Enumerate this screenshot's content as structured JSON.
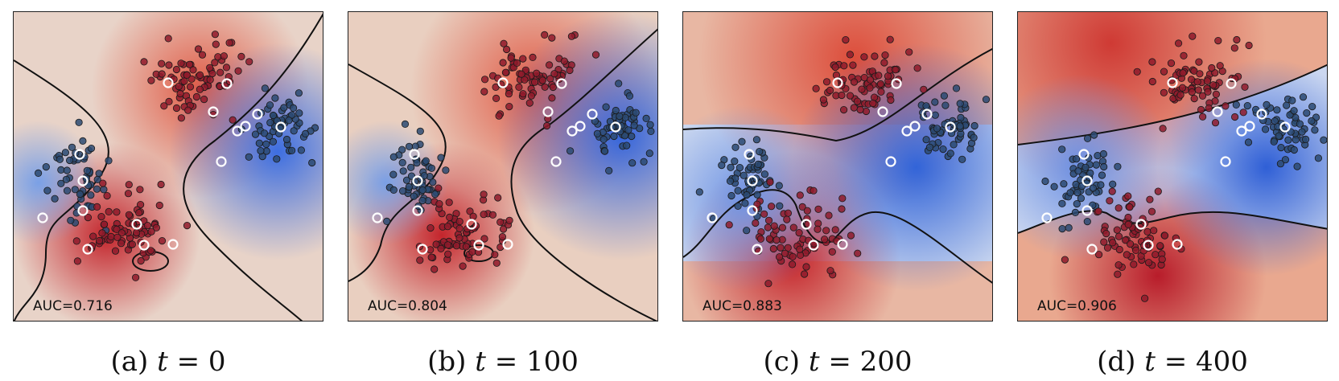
{
  "figure": {
    "panels": [
      {
        "label": "(a)",
        "var": "t",
        "eq": "= 0",
        "auc": "AUC=0.716"
      },
      {
        "label": "(b)",
        "var": "t",
        "eq": "= 100",
        "auc": "AUC=0.804"
      },
      {
        "label": "(c)",
        "var": "t",
        "eq": "= 200",
        "auc": "AUC=0.883"
      },
      {
        "label": "(d)",
        "var": "t",
        "eq": "= 400",
        "auc": "AUC=0.906"
      }
    ]
  },
  "chart_data": [
    {
      "type": "scatter",
      "title": "(a) t = 0",
      "annotation": "AUC=0.716",
      "t": 0,
      "auc": 0.716,
      "series": [
        {
          "name": "class-red"
        },
        {
          "name": "class-blue"
        },
        {
          "name": "labeled"
        }
      ],
      "colors": {
        "red": "#b2182b",
        "blue": "#2166ac"
      }
    },
    {
      "type": "scatter",
      "title": "(b) t = 100",
      "annotation": "AUC=0.804",
      "t": 100,
      "auc": 0.804,
      "series": [
        {
          "name": "class-red"
        },
        {
          "name": "class-blue"
        },
        {
          "name": "labeled"
        }
      ],
      "colors": {
        "red": "#b2182b",
        "blue": "#2166ac"
      }
    },
    {
      "type": "scatter",
      "title": "(c) t = 200",
      "annotation": "AUC=0.883",
      "t": 200,
      "auc": 0.883,
      "series": [
        {
          "name": "class-red"
        },
        {
          "name": "class-blue"
        },
        {
          "name": "labeled"
        }
      ],
      "colors": {
        "red": "#b2182b",
        "blue": "#2166ac"
      }
    },
    {
      "type": "scatter",
      "title": "(d) t = 400",
      "annotation": "AUC=0.906",
      "t": 400,
      "auc": 0.906,
      "series": [
        {
          "name": "class-red"
        },
        {
          "name": "class-blue"
        },
        {
          "name": "labeled"
        }
      ],
      "colors": {
        "red": "#b2182b",
        "blue": "#2166ac"
      }
    }
  ]
}
